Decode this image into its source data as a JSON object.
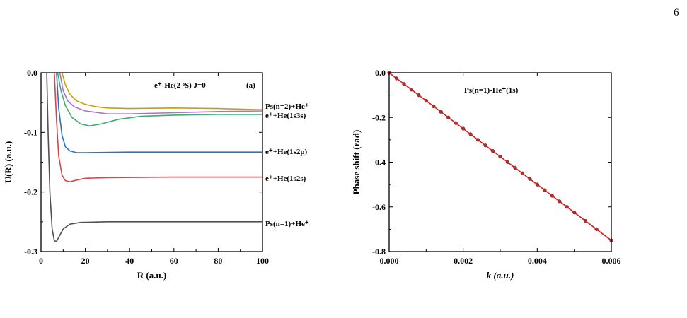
{
  "page_number": "6",
  "chart_data": [
    {
      "type": "line",
      "xlabel": "R (a.u.)",
      "ylabel": "U(R) (a.u.)",
      "xlim": [
        0,
        100
      ],
      "ylim": [
        -0.3,
        0.0
      ],
      "x_ticks": [
        "0",
        "20",
        "40",
        "60",
        "80",
        "100"
      ],
      "y_ticks": [
        "0.0",
        "-0.1",
        "-0.2",
        "-0.3"
      ],
      "annotation_title": "e⁺-He(2 ³S)   J=0",
      "panel_label": "(a)",
      "series": [
        {
          "name": "Ps(n=2)+He⁺",
          "color": "#c8a000",
          "points": [
            [
              9.5,
              0.0
            ],
            [
              11,
              -0.02
            ],
            [
              13,
              -0.036
            ],
            [
              16,
              -0.047
            ],
            [
              20,
              -0.053
            ],
            [
              25,
              -0.057
            ],
            [
              30,
              -0.059
            ],
            [
              40,
              -0.06
            ],
            [
              60,
              -0.059
            ],
            [
              80,
              -0.06
            ],
            [
              100,
              -0.062
            ]
          ]
        },
        {
          "name": "",
          "color": "#b06fd6",
          "points": [
            [
              8.5,
              0.0
            ],
            [
              10,
              -0.03
            ],
            [
              12,
              -0.047
            ],
            [
              15,
              -0.057
            ],
            [
              20,
              -0.064
            ],
            [
              30,
              -0.069
            ],
            [
              40,
              -0.069
            ],
            [
              60,
              -0.067
            ],
            [
              80,
              -0.065
            ],
            [
              100,
              -0.064
            ]
          ]
        },
        {
          "name": "e⁺+He(1s3s)",
          "color": "#3cae6e",
          "points": [
            [
              7.5,
              0.0
            ],
            [
              9,
              -0.03
            ],
            [
              11,
              -0.055
            ],
            [
              14,
              -0.075
            ],
            [
              18,
              -0.086
            ],
            [
              22,
              -0.089
            ],
            [
              27,
              -0.086
            ],
            [
              35,
              -0.078
            ],
            [
              45,
              -0.073
            ],
            [
              60,
              -0.071
            ],
            [
              80,
              -0.07
            ],
            [
              100,
              -0.07
            ]
          ]
        },
        {
          "name": "e⁺+He(1s2p)",
          "color": "#2a6fc9",
          "points": [
            [
              7.0,
              0.0
            ],
            [
              8,
              -0.06
            ],
            [
              9.5,
              -0.105
            ],
            [
              11,
              -0.124
            ],
            [
              13,
              -0.131
            ],
            [
              16,
              -0.134
            ],
            [
              20,
              -0.134
            ],
            [
              40,
              -0.133
            ],
            [
              60,
              -0.133
            ],
            [
              80,
              -0.133
            ],
            [
              100,
              -0.133
            ]
          ]
        },
        {
          "name": "e⁺+He(1s2s)",
          "color": "#e04040",
          "points": [
            [
              6.0,
              0.0
            ],
            [
              7,
              -0.08
            ],
            [
              8,
              -0.14
            ],
            [
              9.5,
              -0.172
            ],
            [
              11,
              -0.181
            ],
            [
              13,
              -0.183
            ],
            [
              16,
              -0.18
            ],
            [
              20,
              -0.177
            ],
            [
              30,
              -0.176
            ],
            [
              60,
              -0.175
            ],
            [
              100,
              -0.175
            ]
          ]
        },
        {
          "name": "Ps(n=1)+He⁺",
          "color": "#505050",
          "points": [
            [
              2.6,
              0.0
            ],
            [
              3.2,
              -0.1
            ],
            [
              4,
              -0.2
            ],
            [
              5,
              -0.262
            ],
            [
              6,
              -0.282
            ],
            [
              7,
              -0.283
            ],
            [
              8,
              -0.276
            ],
            [
              10,
              -0.262
            ],
            [
              13,
              -0.254
            ],
            [
              18,
              -0.251
            ],
            [
              30,
              -0.25
            ],
            [
              60,
              -0.25
            ],
            [
              100,
              -0.25
            ]
          ]
        }
      ]
    },
    {
      "type": "line",
      "xlabel": "k (a.u.)",
      "ylabel": "Phase shift (rad)",
      "xlim": [
        0.0,
        0.006
      ],
      "ylim": [
        -0.8,
        0.0
      ],
      "x_ticks": [
        "0.000",
        "0.002",
        "0.004",
        "0.006"
      ],
      "y_ticks": [
        "0.0",
        "-0.2",
        "-0.4",
        "-0.6",
        "-0.8"
      ],
      "annotation_title": "Ps(n=1)-He⁺(1s)",
      "series": [
        {
          "name": "",
          "color": "#d42020",
          "slope": -125.0,
          "x": [
            0.0,
            0.0002,
            0.0004,
            0.0006,
            0.0008,
            0.001,
            0.0012,
            0.0014,
            0.0016,
            0.0018,
            0.002,
            0.0022,
            0.0024,
            0.0026,
            0.0028,
            0.003,
            0.0032,
            0.0034,
            0.0036,
            0.0038,
            0.004,
            0.0042,
            0.0044,
            0.0046,
            0.0048,
            0.005,
            0.0053,
            0.0056,
            0.006
          ],
          "y": [
            0.0,
            -0.025,
            -0.05,
            -0.075,
            -0.1,
            -0.125,
            -0.15,
            -0.175,
            -0.2,
            -0.225,
            -0.25,
            -0.275,
            -0.3,
            -0.325,
            -0.35,
            -0.375,
            -0.4,
            -0.425,
            -0.45,
            -0.475,
            -0.5,
            -0.525,
            -0.55,
            -0.575,
            -0.6,
            -0.625,
            -0.6625,
            -0.7,
            -0.75
          ]
        }
      ]
    }
  ]
}
